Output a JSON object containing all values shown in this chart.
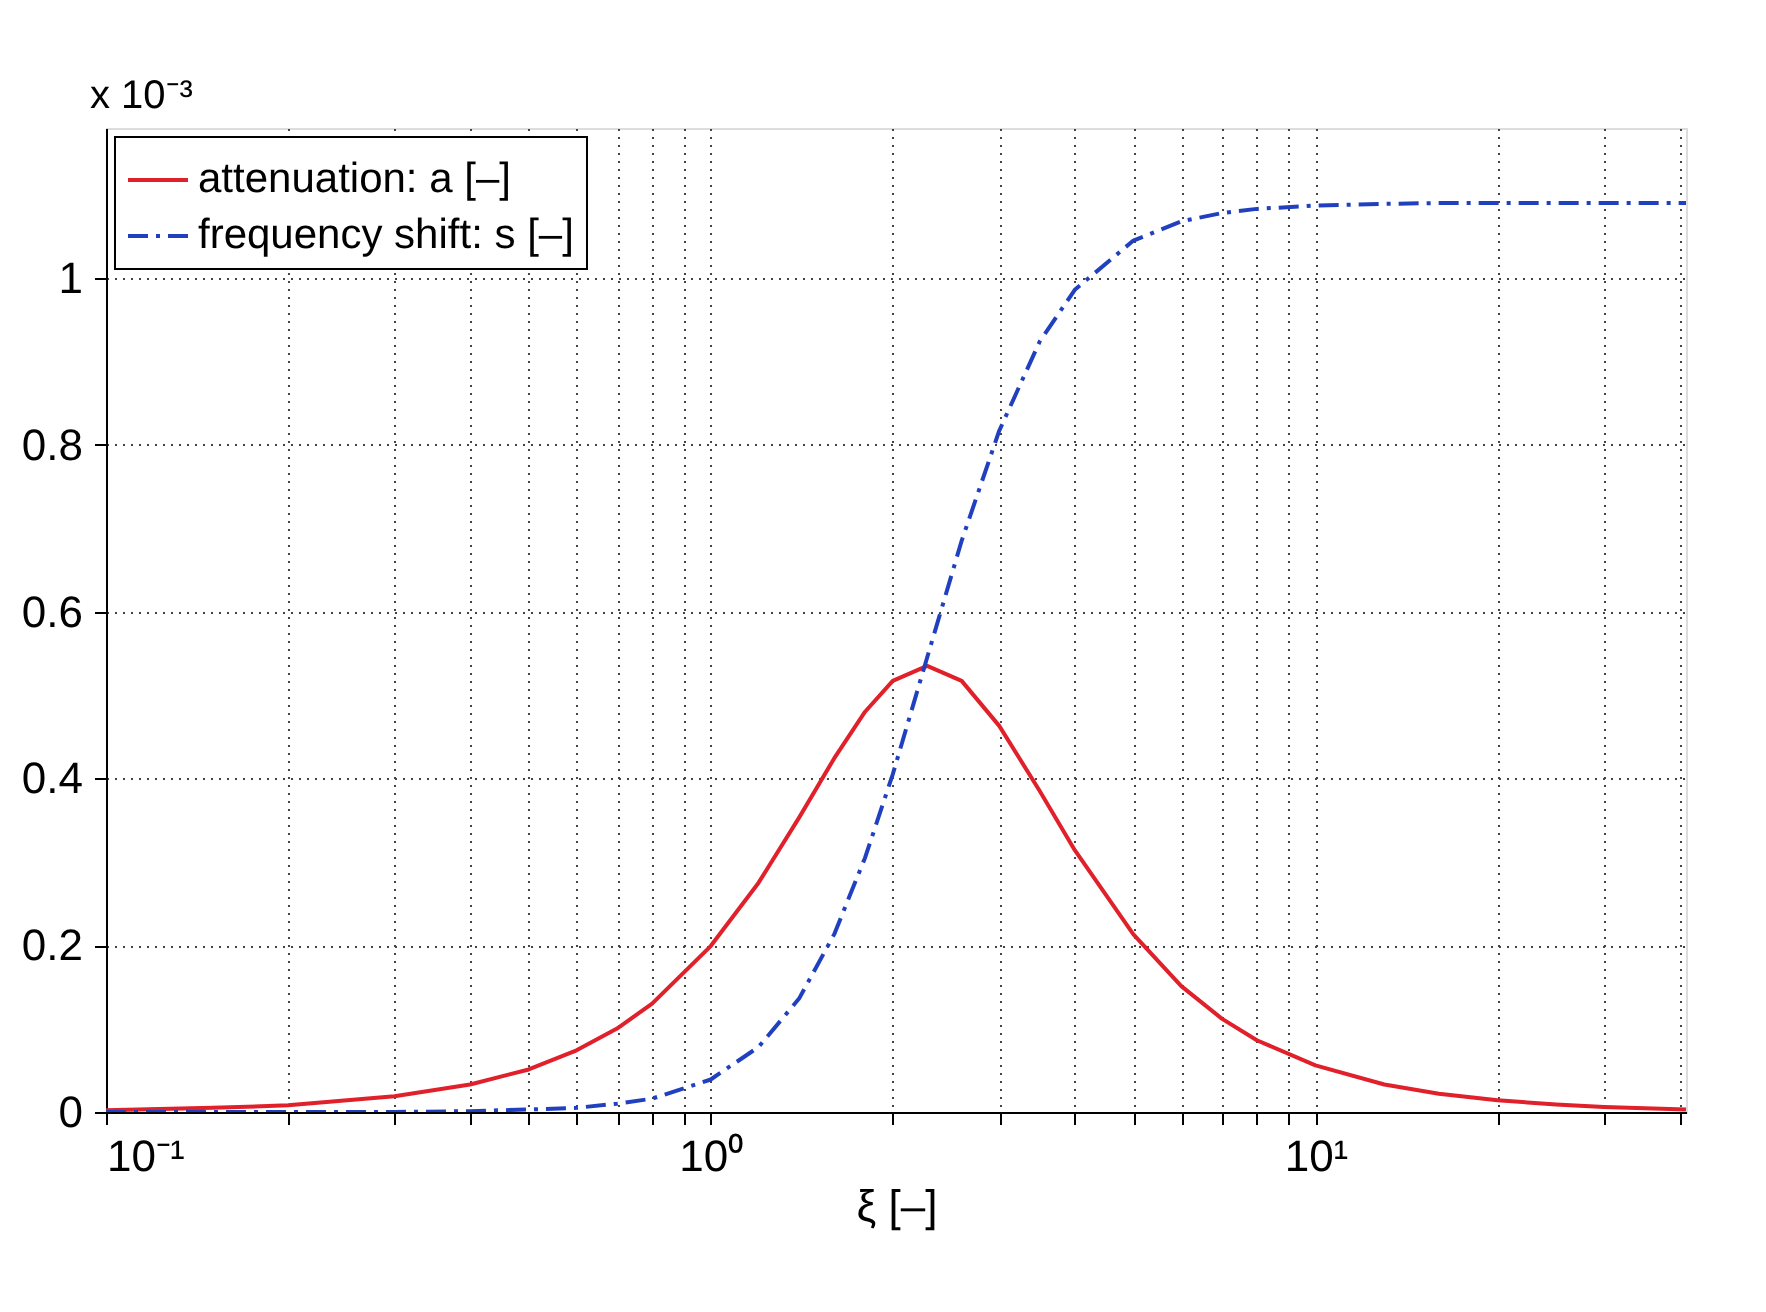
{
  "chart_data": {
    "type": "line",
    "xlabel": "ξ [–]",
    "log": "x",
    "x": [
      0.1,
      0.15,
      0.2,
      0.3,
      0.4,
      0.5,
      0.6,
      0.7,
      0.8,
      1,
      1.2,
      1.4,
      1.6,
      1.8,
      2,
      2.28,
      2.6,
      3,
      3.5,
      4,
      5,
      6,
      7,
      8,
      10,
      13,
      16,
      20,
      25,
      30,
      41
    ],
    "series": [
      {
        "name": "attenuation: a [–]",
        "color": "#e0202a",
        "line_style": "solid",
        "values": [
          0.002,
          0.005,
          0.008,
          0.019,
          0.033,
          0.051,
          0.074,
          0.1,
          0.13,
          0.199,
          0.275,
          0.353,
          0.424,
          0.48,
          0.517,
          0.535,
          0.517,
          0.463,
          0.385,
          0.314,
          0.213,
          0.151,
          0.112,
          0.086,
          0.056,
          0.033,
          0.022,
          0.014,
          0.009,
          0.006,
          0.003
        ]
      },
      {
        "name": "frequency shift: s [–]",
        "color": "#2040c0",
        "line_style": "dashed",
        "values": [
          0.0,
          0.0,
          0.0,
          0.0,
          0.001,
          0.003,
          0.005,
          0.01,
          0.016,
          0.039,
          0.078,
          0.136,
          0.213,
          0.305,
          0.405,
          0.545,
          0.685,
          0.817,
          0.924,
          0.986,
          1.045,
          1.068,
          1.078,
          1.083,
          1.087,
          1.089,
          1.09,
          1.09,
          1.09,
          1.09,
          1.09
        ]
      }
    ],
    "xlim": [
      0.1,
      41
    ],
    "xticks": [
      {
        "value": 0.1,
        "label": "10⁻¹"
      },
      {
        "value": 0.2,
        "label": null
      },
      {
        "value": 0.3,
        "label": null
      },
      {
        "value": 0.4,
        "label": null
      },
      {
        "value": 0.5,
        "label": null
      },
      {
        "value": 0.6,
        "label": null
      },
      {
        "value": 0.7,
        "label": null
      },
      {
        "value": 0.8,
        "label": null
      },
      {
        "value": 0.9,
        "label": null
      },
      {
        "value": 1,
        "label": "10⁰"
      },
      {
        "value": 2,
        "label": null
      },
      {
        "value": 3,
        "label": null
      },
      {
        "value": 4,
        "label": null
      },
      {
        "value": 5,
        "label": null
      },
      {
        "value": 6,
        "label": null
      },
      {
        "value": 7,
        "label": null
      },
      {
        "value": 8,
        "label": null
      },
      {
        "value": 9,
        "label": null
      },
      {
        "value": 10,
        "label": "10¹"
      },
      {
        "value": 20,
        "label": null
      },
      {
        "value": 30,
        "label": null
      },
      {
        "value": 40,
        "label": null
      }
    ],
    "ylim": [
      0,
      1.18
    ],
    "yticks": [
      0,
      0.2,
      0.4,
      0.6,
      0.8,
      1
    ],
    "annotations": [
      "x 10⁻³"
    ],
    "grid": true,
    "legend": "top left",
    "marker": "none"
  }
}
